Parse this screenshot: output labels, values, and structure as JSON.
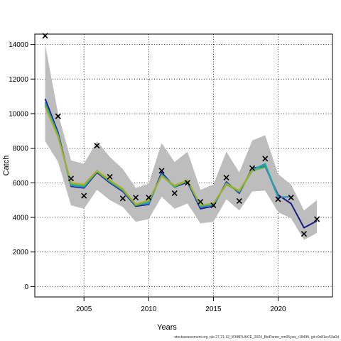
{
  "chart_data": {
    "type": "line",
    "xlabel": "Years",
    "ylabel": "Catch",
    "xlim": [
      2001.2,
      2024.2
    ],
    "ylim": [
      -600,
      14600
    ],
    "x_ticks": [
      2005,
      2010,
      2015,
      2020
    ],
    "y_ticks": [
      0,
      2000,
      4000,
      6000,
      8000,
      10000,
      12000,
      14000
    ],
    "grid": true,
    "x": [
      2002,
      2003,
      2004,
      2005,
      2006,
      2007,
      2008,
      2009,
      2010,
      2011,
      2012,
      2013,
      2014,
      2015,
      2016,
      2017,
      2018,
      2019,
      2020,
      2021,
      2022,
      2023
    ],
    "confidence_band": {
      "lower": [
        8400,
        7200,
        4700,
        4500,
        5600,
        5000,
        4600,
        3750,
        3900,
        5200,
        4500,
        4800,
        3650,
        3750,
        5050,
        4400,
        5500,
        5550,
        4300,
        3950,
        2700,
        3100
      ],
      "upper": [
        14000,
        10000,
        7300,
        7100,
        8400,
        7500,
        6800,
        5700,
        5950,
        8300,
        7200,
        7800,
        5600,
        5900,
        7800,
        6600,
        8450,
        8750,
        6500,
        5900,
        4400,
        5000
      ]
    },
    "series": [
      {
        "color": "#1a1a8c",
        "values": [
          10850,
          8900,
          5800,
          5700,
          6600,
          6000,
          5500,
          4650,
          4750,
          6600,
          5750,
          6050,
          4500,
          4650,
          6050,
          5400,
          6850,
          6950,
          5300,
          4800,
          3400,
          3800
        ]
      },
      {
        "color": "#2c8cc8",
        "values": [
          10650,
          8800,
          5850,
          5750,
          6650,
          6050,
          5550,
          4700,
          4800,
          6500,
          5800,
          6100,
          4600,
          4700,
          6000,
          5450,
          6800,
          7000,
          5150,
          5200,
          null,
          null
        ]
      },
      {
        "color": "#2aa6a0",
        "values": [
          10550,
          8750,
          5900,
          5800,
          6700,
          6100,
          5600,
          4750,
          4900,
          6450,
          5750,
          6150,
          4650,
          4750,
          5950,
          5500,
          6750,
          7100,
          5200,
          null,
          null,
          null
        ]
      },
      {
        "color": "#57b848",
        "values": [
          10450,
          8700,
          5950,
          5850,
          6650,
          6100,
          5600,
          4700,
          4950,
          6400,
          5800,
          6100,
          4700,
          4800,
          5900,
          5500,
          6700,
          6900,
          null,
          null,
          null,
          null
        ]
      },
      {
        "color": "#a8ad2a",
        "values": [
          10400,
          8650,
          6000,
          5900,
          6700,
          6150,
          5650,
          4750,
          5000,
          6400,
          5850,
          6150,
          4700,
          4800,
          5950,
          5550,
          6750,
          null,
          null,
          null,
          null,
          null
        ]
      }
    ],
    "observed": {
      "marker": "x",
      "x": [
        2002,
        2003,
        2004,
        2005,
        2006,
        2007,
        2008,
        2009,
        2010,
        2011,
        2012,
        2013,
        2014,
        2015,
        2016,
        2017,
        2018,
        2019,
        2020,
        2021,
        2022,
        2023
      ],
      "values": [
        14500,
        9850,
        6250,
        5250,
        8150,
        6350,
        5100,
        5150,
        5150,
        6700,
        5400,
        6000,
        4900,
        4700,
        6300,
        4950,
        6850,
        7400,
        5050,
        5150,
        3050,
        3900
      ]
    }
  },
  "footer": "stockassessment.org, ple.27.21-32_WKBPLAICE_2024_BioParsw_nm05ysw_r18495, git:c9c81ec53a0d"
}
